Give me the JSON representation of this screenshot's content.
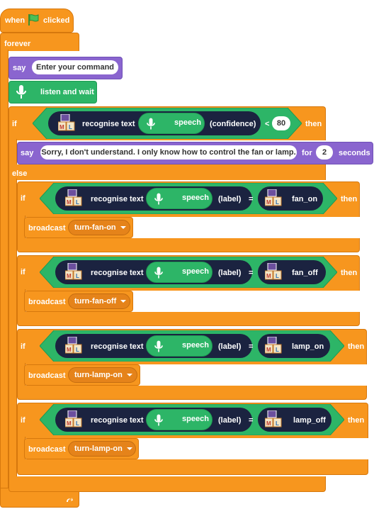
{
  "hat": {
    "when": "when",
    "clicked": "clicked",
    "flag_icon": "green-flag-icon"
  },
  "forever": {
    "label": "forever"
  },
  "say1": {
    "keyword": "say",
    "text": "Enter your command"
  },
  "listen": {
    "label": "listen and wait",
    "icon": "microphone-icon"
  },
  "if1": {
    "keyword": "if",
    "then": "then",
    "recognise": "recognise text",
    "speech": "speech",
    "confidence": "(confidence)",
    "operator": "<",
    "value": "80"
  },
  "say2": {
    "keyword": "say",
    "text": "Sorry, I don't understand. I only know how to control the fan or lamp.",
    "for": "for",
    "seconds_value": "2",
    "seconds": "seconds"
  },
  "else": {
    "label": "else"
  },
  "cases": [
    {
      "if": "if",
      "recognise": "recognise text",
      "speech": "speech",
      "field": "(label)",
      "equals": "=",
      "label_value": "fan_on",
      "then": "then",
      "broadcast": "broadcast",
      "message": "turn-fan-on"
    },
    {
      "if": "if",
      "recognise": "recognise text",
      "speech": "speech",
      "field": "(label)",
      "equals": "=",
      "label_value": "fan_off",
      "then": "then",
      "broadcast": "broadcast",
      "message": "turn-fan-off"
    },
    {
      "if": "if",
      "recognise": "recognise text",
      "speech": "speech",
      "field": "(label)",
      "equals": "=",
      "label_value": "lamp_on",
      "then": "then",
      "broadcast": "broadcast",
      "message": "turn-lamp-on"
    },
    {
      "if": "if",
      "recognise": "recognise text",
      "speech": "speech",
      "field": "(label)",
      "equals": "=",
      "label_value": "lamp_off",
      "then": "then",
      "broadcast": "broadcast",
      "message": "turn-lamp-on"
    }
  ],
  "colors": {
    "control": "#f7961e",
    "looks": "#8a65cf",
    "extension": "#2db567",
    "reporter": "#1b2340"
  }
}
